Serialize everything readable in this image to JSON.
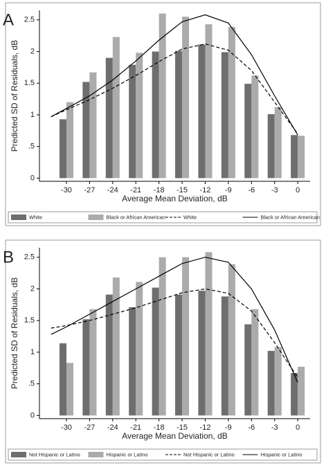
{
  "chart_data": [
    {
      "type": "bar",
      "panel_label": "A",
      "y_label": "Predicted SD of Residuals, dB",
      "x_label": "Average Mean Deviation, dB",
      "x": [
        -30,
        -27,
        -24,
        -21,
        -18,
        -15,
        -12,
        -9,
        -6,
        -3,
        0
      ],
      "xlim": [
        -33.5,
        1.6
      ],
      "xticks": [
        -30,
        -27,
        -24,
        -21,
        -18,
        -15,
        -12,
        -9,
        -6,
        -3,
        0
      ],
      "ylim": [
        -0.05,
        2.65
      ],
      "yticks": [
        0,
        {
          "value": 0.5,
          "label": ".5"
        },
        1,
        1.5,
        2,
        2.5
      ],
      "series": [
        {
          "name": "White",
          "type": "bar",
          "color": "#6e6e6e",
          "values": [
            0.93,
            1.52,
            1.9,
            1.79,
            2.0,
            2.01,
            2.11,
            1.99,
            1.49,
            1.01,
            0.68
          ]
        },
        {
          "name": "Black or African American",
          "type": "bar",
          "color": "#ababab",
          "values": [
            1.2,
            1.67,
            2.23,
            1.98,
            2.6,
            2.55,
            2.43,
            2.39,
            1.62,
            1.12,
            0.67
          ]
        },
        {
          "name": "White",
          "type": "line",
          "dash": true,
          "color": "#000000",
          "x": [
            -32,
            -30,
            -27,
            -24,
            -21,
            -18,
            -15,
            -12,
            -9,
            -6,
            -3,
            0
          ],
          "values": [
            0.97,
            1.08,
            1.24,
            1.42,
            1.62,
            1.84,
            2.04,
            2.12,
            2.02,
            1.7,
            1.2,
            0.7
          ]
        },
        {
          "name": "Black or African American",
          "type": "line",
          "dash": false,
          "color": "#000000",
          "x": [
            -32,
            -30,
            -27,
            -24,
            -21,
            -18,
            -15,
            -12,
            -9,
            -6,
            -3,
            0
          ],
          "values": [
            0.97,
            1.1,
            1.3,
            1.55,
            1.85,
            2.18,
            2.47,
            2.58,
            2.45,
            1.95,
            1.3,
            0.68
          ]
        }
      ]
    },
    {
      "type": "bar",
      "panel_label": "B",
      "y_label": "Predicted SD of Residuals, dB",
      "x_label": "Average Mean Deviation, dB",
      "x": [
        -30,
        -27,
        -24,
        -21,
        -18,
        -15,
        -12,
        -9,
        -6,
        -3,
        0
      ],
      "xlim": [
        -33.5,
        1.6
      ],
      "xticks": [
        -30,
        -27,
        -24,
        -21,
        -18,
        -15,
        -12,
        -9,
        -6,
        -3,
        0
      ],
      "ylim": [
        -0.05,
        2.65
      ],
      "yticks": [
        0,
        {
          "value": 0.5,
          "label": ".5"
        },
        1,
        1.5,
        2,
        2.5
      ],
      "series": [
        {
          "name": "Not Hispanic or Latino",
          "type": "bar",
          "color": "#6e6e6e",
          "values": [
            1.14,
            1.52,
            1.91,
            1.71,
            2.02,
            1.91,
            1.97,
            1.88,
            1.44,
            1.02,
            0.67
          ]
        },
        {
          "name": "Hispanic or Latino",
          "type": "bar",
          "color": "#ababab",
          "values": [
            0.83,
            1.68,
            2.18,
            2.11,
            2.5,
            2.5,
            2.58,
            2.39,
            1.68,
            1.08,
            0.77
          ]
        },
        {
          "name": "Not Hispanic or Latino",
          "type": "line",
          "dash": true,
          "color": "#000000",
          "x": [
            -32,
            -30,
            -27,
            -24,
            -21,
            -18,
            -15,
            -12,
            -9,
            -6,
            -3,
            0
          ],
          "values": [
            1.38,
            1.42,
            1.5,
            1.6,
            1.7,
            1.82,
            1.94,
            2.0,
            1.93,
            1.65,
            1.15,
            0.6
          ]
        },
        {
          "name": "Hispanic or Latino",
          "type": "line",
          "dash": false,
          "color": "#000000",
          "x": [
            -32,
            -30,
            -27,
            -24,
            -21,
            -18,
            -15,
            -12,
            -9,
            -6,
            -3,
            0
          ],
          "values": [
            1.28,
            1.4,
            1.6,
            1.8,
            2.0,
            2.2,
            2.4,
            2.5,
            2.42,
            2.0,
            1.35,
            0.52
          ]
        }
      ]
    }
  ]
}
